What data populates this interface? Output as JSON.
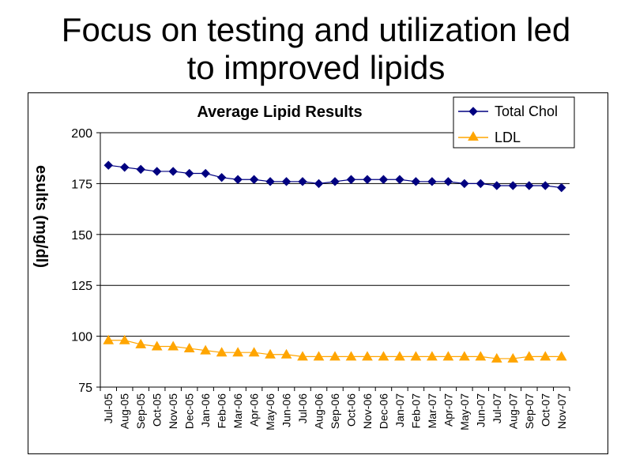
{
  "slide": {
    "title": "Focus on testing and utilization led to improved lipids"
  },
  "chart_data": {
    "type": "line",
    "title": "Average Lipid Results",
    "xlabel": "",
    "ylabel": "esults (mg/dl)",
    "ylim": [
      75,
      200
    ],
    "yticks": [
      75,
      100,
      125,
      150,
      175,
      200
    ],
    "grid": true,
    "legend_position": "top-right",
    "x": [
      "Jul-05",
      "Aug-05",
      "Sep-05",
      "Oct-05",
      "Nov-05",
      "Dec-05",
      "Jan-06",
      "Feb-06",
      "Mar-06",
      "Apr-06",
      "May-06",
      "Jun-06",
      "Jul-06",
      "Aug-06",
      "Sep-06",
      "Oct-06",
      "Nov-06",
      "Dec-06",
      "Jan-07",
      "Feb-07",
      "Mar-07",
      "Apr-07",
      "May-07",
      "Jun-07",
      "Jul-07",
      "Aug-07",
      "Sep-07",
      "Oct-07",
      "Nov-07"
    ],
    "x_tick_labels": [
      "Jul-05",
      "Aug-05",
      "Sep-05",
      "Oct-05",
      "Nov-05",
      "Dec-05",
      "Jan-06",
      "Feb-06",
      "Mar-06",
      "Apr-06",
      "May-06",
      "Jun-06",
      "Jul-06",
      "Aug-06",
      "Sep-06",
      "Oct-06",
      "Nov-06",
      "Dec-06",
      "Jan-07",
      "Feb-07",
      "Mar-07",
      "Apr-07",
      "May-07",
      "Jun-07",
      "Jul-07",
      "Aug-07",
      "Sep-07",
      "Oct-07",
      "Nov-07"
    ],
    "series": [
      {
        "name": "Total Chol",
        "color": "#000080",
        "marker": "diamond",
        "values": [
          184,
          183,
          182,
          181,
          181,
          180,
          180,
          178,
          177,
          177,
          176,
          176,
          176,
          175,
          176,
          177,
          177,
          177,
          177,
          176,
          176,
          176,
          175,
          175,
          174,
          174,
          174,
          174,
          173
        ]
      },
      {
        "name": "LDL",
        "color": "#FFA500",
        "marker": "triangle",
        "values": [
          98,
          98,
          96,
          95,
          95,
          94,
          93,
          92,
          92,
          92,
          91,
          91,
          90,
          90,
          90,
          90,
          90,
          90,
          90,
          90,
          90,
          90,
          90,
          90,
          89,
          89,
          90,
          90,
          90
        ]
      }
    ]
  }
}
